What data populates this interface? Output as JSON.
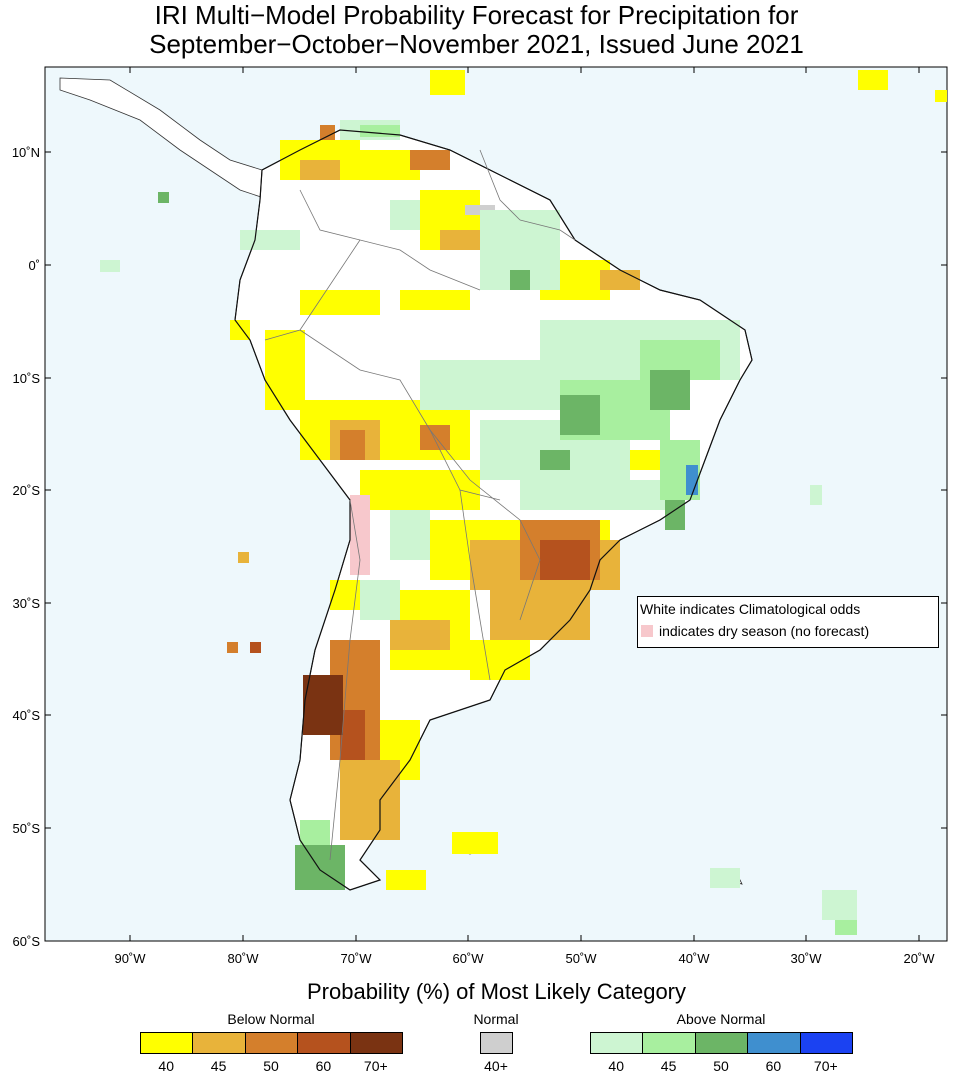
{
  "title": {
    "line1": "IRI Multi−Model Probability Forecast for Precipitation for",
    "line2": "September−October−November 2021, Issued June 2021"
  },
  "map": {
    "ocean_color": "#eef8fc",
    "land_color": "#ffffff",
    "y_axis_labels": [
      "10˚N",
      "0˚",
      "10˚S",
      "20˚S",
      "30˚S",
      "40˚S",
      "50˚S",
      "60˚S"
    ],
    "x_axis_labels": [
      "90˚W",
      "80˚W",
      "70˚W",
      "60˚W",
      "50˚W",
      "40˚W",
      "30˚W",
      "20˚W"
    ],
    "note_line1": "White indicates Climatological odds",
    "note_line2": "indicates dry season (no forecast)"
  },
  "legend": {
    "title": "Probability (%) of Most Likely Category",
    "below_normal": {
      "label": "Below Normal",
      "colors": [
        "#ffff00",
        "#e8b33a",
        "#d47f2c",
        "#b5521e",
        "#7a3312"
      ],
      "ticks": [
        "40",
        "45",
        "50",
        "60",
        "70+"
      ]
    },
    "normal": {
      "label": "Normal",
      "colors": [
        "#cfcfcf"
      ],
      "ticks": [
        "40+"
      ]
    },
    "above_normal": {
      "label": "Above Normal",
      "colors": [
        "#cdf5d2",
        "#a8ef9f",
        "#6cb566",
        "#3f8fcf",
        "#1b42f2"
      ],
      "ticks": [
        "40",
        "45",
        "50",
        "60",
        "70+"
      ]
    }
  }
}
